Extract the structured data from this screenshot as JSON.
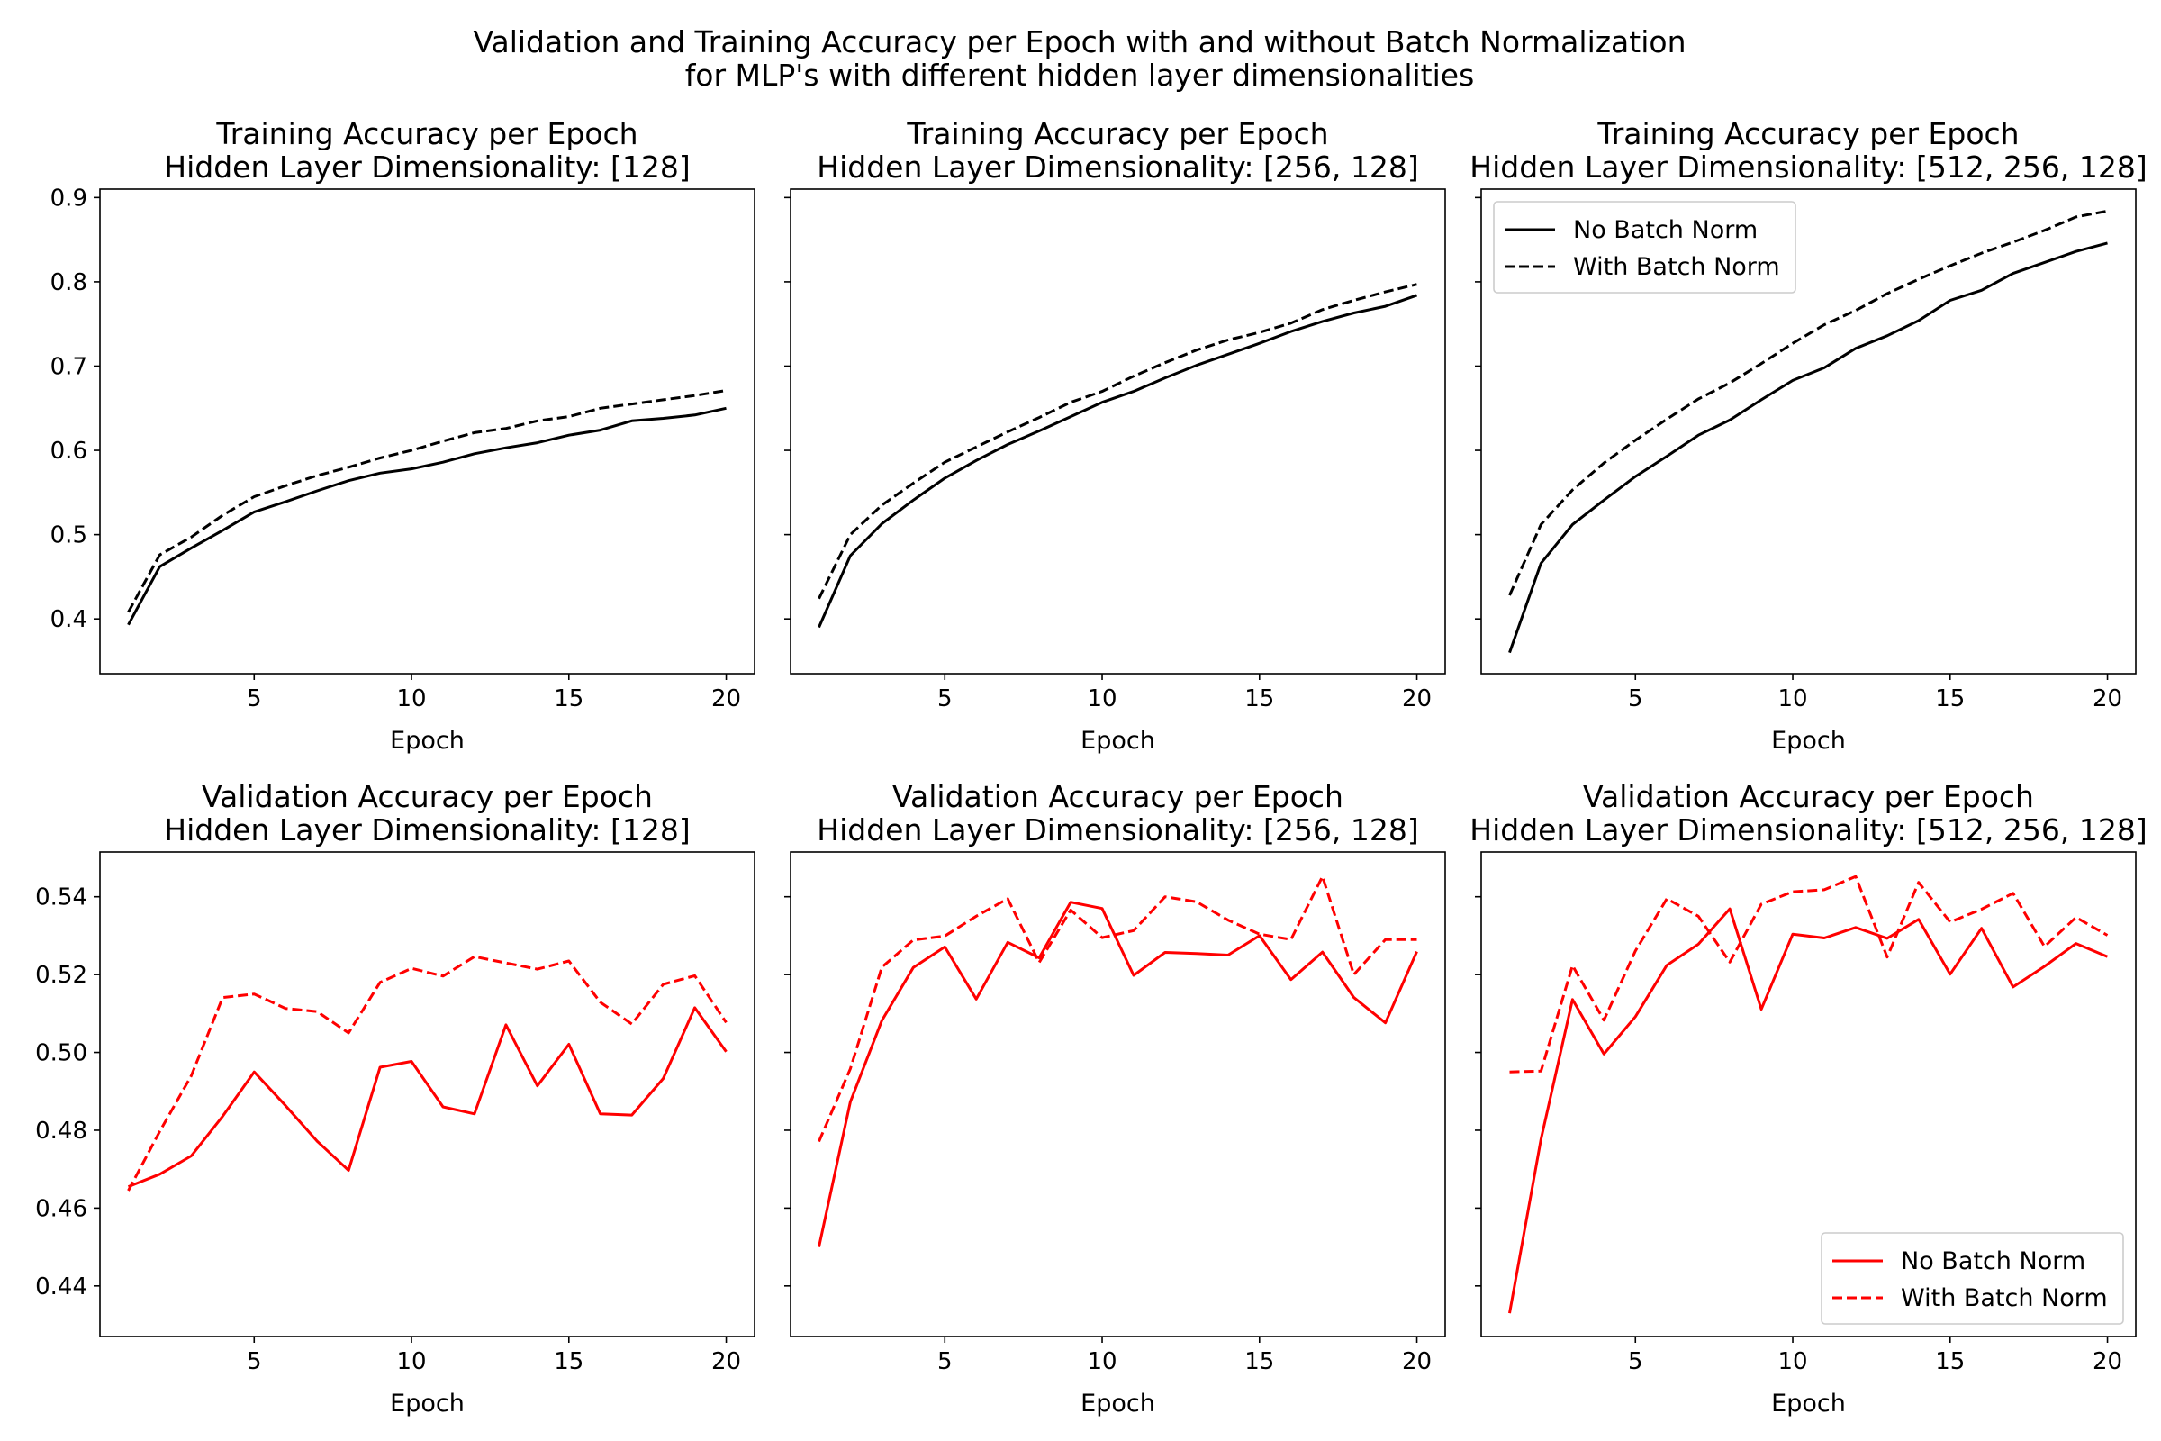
{
  "figure": {
    "title_line1": "Validation and Training Accuracy per Epoch with and without Batch Normalization",
    "title_line2": "for MLP's with different hidden layer dimensionalities"
  },
  "colors": {
    "training": "#000000",
    "validation": "#ff0000"
  },
  "chart_data": [
    {
      "type": "line",
      "grid": false,
      "title": [
        "Training Accuracy per Epoch",
        "Hidden Layer Dimensionality: [128]"
      ],
      "xlabel": "Epoch",
      "ylabel": "",
      "xlim": [
        0.1,
        20.9
      ],
      "ylim": [
        0.335,
        0.91
      ],
      "xticks": [
        5,
        10,
        15,
        20
      ],
      "yticks": [
        0.4,
        0.5,
        0.6,
        0.7,
        0.8,
        0.9
      ],
      "yticklabels": [
        "0.4",
        "0.5",
        "0.6",
        "0.7",
        "0.8",
        "0.9"
      ],
      "color": "#000000",
      "legend": null,
      "x": [
        1,
        2,
        3,
        4,
        5,
        6,
        7,
        8,
        9,
        10,
        11,
        12,
        13,
        14,
        15,
        16,
        17,
        18,
        19,
        20
      ],
      "series": [
        {
          "name": "No Batch Norm",
          "style": "solid",
          "values": [
            0.393,
            0.462,
            0.484,
            0.505,
            0.527,
            0.539,
            0.552,
            0.564,
            0.573,
            0.578,
            0.586,
            0.596,
            0.603,
            0.609,
            0.618,
            0.624,
            0.635,
            0.638,
            0.642,
            0.65
          ]
        },
        {
          "name": "With Batch Norm",
          "style": "dashed",
          "values": [
            0.408,
            0.476,
            0.497,
            0.523,
            0.545,
            0.558,
            0.57,
            0.58,
            0.591,
            0.6,
            0.611,
            0.621,
            0.626,
            0.635,
            0.64,
            0.65,
            0.655,
            0.66,
            0.665,
            0.671
          ]
        }
      ]
    },
    {
      "type": "line",
      "grid": false,
      "title": [
        "Training Accuracy per Epoch",
        "Hidden Layer Dimensionality: [256, 128]"
      ],
      "xlabel": "Epoch",
      "ylabel": "",
      "xlim": [
        0.1,
        20.9
      ],
      "ylim": [
        0.335,
        0.91
      ],
      "xticks": [
        5,
        10,
        15,
        20
      ],
      "yticks": [
        0.4,
        0.5,
        0.6,
        0.7,
        0.8,
        0.9
      ],
      "yticklabels": [],
      "color": "#000000",
      "legend": null,
      "x": [
        1,
        2,
        3,
        4,
        5,
        6,
        7,
        8,
        9,
        10,
        11,
        12,
        13,
        14,
        15,
        16,
        17,
        18,
        19,
        20
      ],
      "series": [
        {
          "name": "No Batch Norm",
          "style": "solid",
          "values": [
            0.39,
            0.475,
            0.513,
            0.541,
            0.567,
            0.588,
            0.607,
            0.623,
            0.64,
            0.657,
            0.67,
            0.686,
            0.701,
            0.714,
            0.727,
            0.741,
            0.753,
            0.763,
            0.771,
            0.784
          ]
        },
        {
          "name": "With Batch Norm",
          "style": "dashed",
          "values": [
            0.424,
            0.5,
            0.535,
            0.561,
            0.586,
            0.604,
            0.622,
            0.639,
            0.657,
            0.67,
            0.688,
            0.704,
            0.719,
            0.731,
            0.74,
            0.751,
            0.767,
            0.778,
            0.788,
            0.797
          ]
        }
      ]
    },
    {
      "type": "line",
      "grid": false,
      "title": [
        "Training Accuracy per Epoch",
        "Hidden Layer Dimensionality: [512, 256, 128]"
      ],
      "xlabel": "Epoch",
      "ylabel": "",
      "xlim": [
        0.1,
        20.9
      ],
      "ylim": [
        0.335,
        0.91
      ],
      "xticks": [
        5,
        10,
        15,
        20
      ],
      "yticks": [
        0.4,
        0.5,
        0.6,
        0.7,
        0.8,
        0.9
      ],
      "yticklabels": [],
      "color": "#000000",
      "legend": "top-left",
      "x": [
        1,
        2,
        3,
        4,
        5,
        6,
        7,
        8,
        9,
        10,
        11,
        12,
        13,
        14,
        15,
        16,
        17,
        18,
        19,
        20
      ],
      "series": [
        {
          "name": "No Batch Norm",
          "style": "solid",
          "values": [
            0.36,
            0.466,
            0.512,
            0.541,
            0.569,
            0.593,
            0.618,
            0.636,
            0.66,
            0.683,
            0.698,
            0.721,
            0.736,
            0.754,
            0.778,
            0.79,
            0.81,
            0.823,
            0.836,
            0.846
          ]
        },
        {
          "name": "With Batch Norm",
          "style": "dashed",
          "values": [
            0.428,
            0.512,
            0.553,
            0.585,
            0.612,
            0.637,
            0.661,
            0.68,
            0.703,
            0.727,
            0.749,
            0.766,
            0.786,
            0.803,
            0.819,
            0.834,
            0.847,
            0.861,
            0.877,
            0.884
          ]
        }
      ]
    },
    {
      "type": "line",
      "grid": false,
      "title": [
        "Validation Accuracy per Epoch",
        "Hidden Layer Dimensionality: [128]"
      ],
      "xlabel": "Epoch",
      "ylabel": "",
      "xlim": [
        0.1,
        20.9
      ],
      "ylim": [
        0.427,
        0.5515
      ],
      "xticks": [
        5,
        10,
        15,
        20
      ],
      "yticks": [
        0.44,
        0.46,
        0.48,
        0.5,
        0.52,
        0.54
      ],
      "yticklabels": [
        "0.44",
        "0.46",
        "0.48",
        "0.50",
        "0.52",
        "0.54"
      ],
      "color": "#ff0000",
      "legend": null,
      "x": [
        1,
        2,
        3,
        4,
        5,
        6,
        7,
        8,
        9,
        10,
        11,
        12,
        13,
        14,
        15,
        16,
        17,
        18,
        19,
        20
      ],
      "series": [
        {
          "name": "No Batch Norm",
          "style": "solid",
          "values": [
            0.4655,
            0.4687,
            0.4734,
            0.4836,
            0.495,
            0.4863,
            0.4772,
            0.4697,
            0.4962,
            0.4977,
            0.486,
            0.4842,
            0.5071,
            0.4914,
            0.5021,
            0.4842,
            0.4839,
            0.4933,
            0.5115,
            0.5002
          ]
        },
        {
          "name": "With Batch Norm",
          "style": "dashed",
          "values": [
            0.4645,
            0.4797,
            0.494,
            0.5141,
            0.515,
            0.5113,
            0.5105,
            0.505,
            0.518,
            0.5216,
            0.5196,
            0.5246,
            0.523,
            0.5214,
            0.5235,
            0.5129,
            0.5073,
            0.5175,
            0.5197,
            0.5077
          ]
        }
      ]
    },
    {
      "type": "line",
      "grid": false,
      "title": [
        "Validation Accuracy per Epoch",
        "Hidden Layer Dimensionality: [256, 128]"
      ],
      "xlabel": "Epoch",
      "ylabel": "",
      "xlim": [
        0.1,
        20.9
      ],
      "ylim": [
        0.427,
        0.5515
      ],
      "xticks": [
        5,
        10,
        15,
        20
      ],
      "yticks": [
        0.44,
        0.46,
        0.48,
        0.5,
        0.52,
        0.54
      ],
      "yticklabels": [],
      "color": "#ff0000",
      "legend": null,
      "x": [
        1,
        2,
        3,
        4,
        5,
        6,
        7,
        8,
        9,
        10,
        11,
        12,
        13,
        14,
        15,
        16,
        17,
        18,
        19,
        20
      ],
      "series": [
        {
          "name": "No Batch Norm",
          "style": "solid",
          "values": [
            0.45,
            0.4873,
            0.5082,
            0.5218,
            0.5271,
            0.5137,
            0.5283,
            0.5243,
            0.5386,
            0.537,
            0.5198,
            0.5257,
            0.5254,
            0.525,
            0.53,
            0.5187,
            0.5258,
            0.5141,
            0.5076,
            0.5259
          ]
        },
        {
          "name": "With Batch Norm",
          "style": "dashed",
          "values": [
            0.4771,
            0.4958,
            0.5219,
            0.5289,
            0.5299,
            0.535,
            0.5395,
            0.5231,
            0.5366,
            0.5295,
            0.5313,
            0.54,
            0.5387,
            0.534,
            0.5304,
            0.529,
            0.5452,
            0.52,
            0.529,
            0.529
          ]
        }
      ]
    },
    {
      "type": "line",
      "grid": false,
      "title": [
        "Validation Accuracy per Epoch",
        "Hidden Layer Dimensionality: [512, 256, 128]"
      ],
      "xlabel": "Epoch",
      "ylabel": "",
      "xlim": [
        0.1,
        20.9
      ],
      "ylim": [
        0.427,
        0.5515
      ],
      "xticks": [
        5,
        10,
        15,
        20
      ],
      "yticks": [
        0.44,
        0.46,
        0.48,
        0.5,
        0.52,
        0.54
      ],
      "yticklabels": [],
      "color": "#ff0000",
      "legend": "bottom-right",
      "x": [
        1,
        2,
        3,
        4,
        5,
        6,
        7,
        8,
        9,
        10,
        11,
        12,
        13,
        14,
        15,
        16,
        17,
        18,
        19,
        20
      ],
      "series": [
        {
          "name": "No Batch Norm",
          "style": "solid",
          "values": [
            0.433,
            0.4777,
            0.5136,
            0.4996,
            0.5092,
            0.5224,
            0.5278,
            0.5369,
            0.5111,
            0.5304,
            0.5294,
            0.5321,
            0.5293,
            0.5342,
            0.5201,
            0.5319,
            0.5168,
            0.5221,
            0.528,
            0.5246
          ]
        },
        {
          "name": "With Batch Norm",
          "style": "dashed",
          "values": [
            0.495,
            0.4952,
            0.5223,
            0.5083,
            0.5261,
            0.5395,
            0.535,
            0.5232,
            0.5381,
            0.5413,
            0.5418,
            0.5452,
            0.5245,
            0.5437,
            0.5335,
            0.5368,
            0.5409,
            0.5272,
            0.5347,
            0.5301
          ]
        }
      ]
    }
  ]
}
